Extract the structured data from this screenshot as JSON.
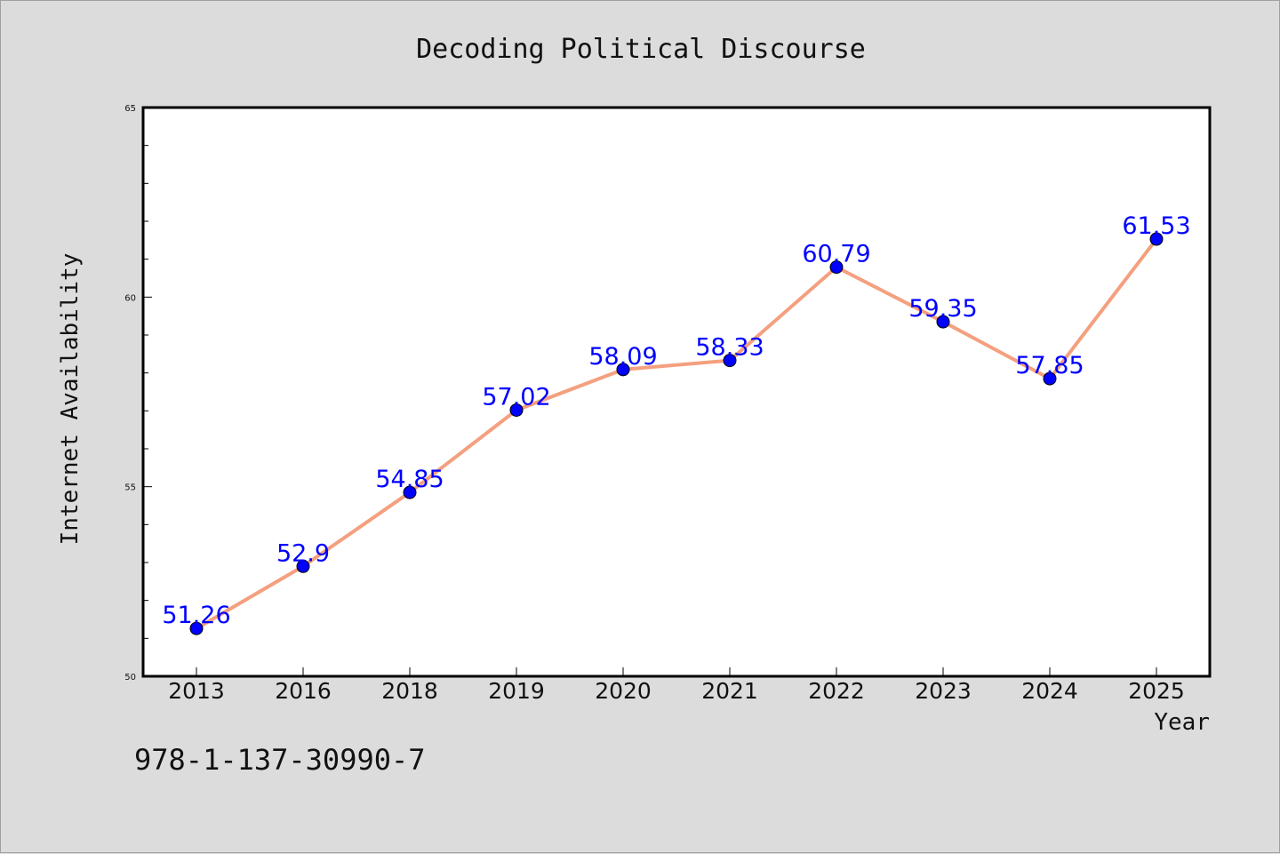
{
  "chart_data": {
    "type": "line",
    "title": "Decoding Political Discourse",
    "xlabel": "Year",
    "ylabel": "Internet Availability",
    "categories": [
      "2013",
      "2016",
      "2018",
      "2019",
      "2020",
      "2021",
      "2022",
      "2023",
      "2024",
      "2025"
    ],
    "series": [
      {
        "values": [
          51.26,
          52.9,
          54.85,
          57.02,
          58.09,
          58.33,
          60.79,
          59.35,
          57.85,
          61.53
        ],
        "data_labels": [
          "51.26",
          "52.9",
          "54.85",
          "57.02",
          "58.09",
          "58.33",
          "60.79",
          "59.35",
          "57.85",
          "61.53"
        ],
        "line_color": "#f4a07f",
        "marker_color": "#0000ff"
      }
    ],
    "ylim": [
      50,
      65
    ],
    "yticks": [
      "50",
      "55",
      "60",
      "65"
    ],
    "grid": false,
    "legend": "none"
  },
  "footer": {
    "isbn": "978-1-137-30990-7"
  },
  "colors": {
    "background": "#dcdcdc",
    "plot_background": "#ffffff",
    "line": "#f4a07f",
    "marker": "#0000ff",
    "data_label": "#0000ff"
  }
}
